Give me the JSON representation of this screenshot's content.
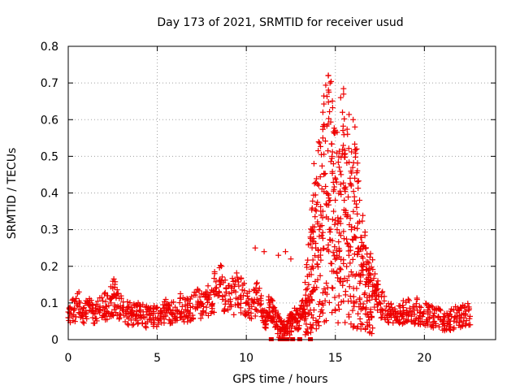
{
  "chart_data": {
    "type": "scatter",
    "title": "Day 173 of 2021, SRMTID for receiver usud",
    "xlabel": "GPS time / hours",
    "ylabel": "SRMTID / TECUs",
    "xlim": [
      0,
      24
    ],
    "ylim": [
      0,
      0.8
    ],
    "x_ticks": [
      0,
      5,
      10,
      15,
      20
    ],
    "x_tick_labels": [
      "0",
      "5",
      "10",
      "15",
      "20"
    ],
    "y_ticks": [
      0,
      0.1,
      0.2,
      0.3,
      0.4,
      0.5,
      0.6,
      0.7,
      0.8
    ],
    "y_tick_labels": [
      "0",
      "0.1",
      "0.2",
      "0.3",
      "0.4",
      "0.5",
      "0.6",
      "0.7",
      "0.8"
    ],
    "grid": true,
    "marker": "+",
    "color": "#ee0000",
    "series": [
      {
        "name": "SRMTID",
        "x": [
          0.0,
          0.3,
          0.6,
          0.9,
          1.2,
          1.5,
          1.8,
          2.1,
          2.4,
          2.6,
          2.8,
          3.1,
          3.4,
          3.7,
          4.0,
          4.3,
          4.6,
          4.9,
          5.2,
          5.5,
          5.8,
          6.1,
          6.4,
          6.7,
          7.0,
          7.3,
          7.6,
          7.9,
          8.2,
          8.5,
          8.8,
          9.1,
          9.4,
          9.7,
          10.0,
          10.3,
          10.6,
          10.9,
          11.1,
          11.3,
          11.5,
          11.7,
          11.9,
          12.1,
          12.3,
          12.5,
          12.7,
          12.9,
          13.1,
          13.3,
          13.5,
          13.7,
          13.9,
          14.1,
          14.3,
          14.5,
          14.7,
          14.9,
          15.1,
          15.3,
          15.5,
          15.7,
          15.9,
          16.1,
          16.3,
          16.5,
          16.7,
          16.9,
          17.1,
          17.3,
          17.5,
          17.8,
          18.1,
          18.4,
          18.7,
          19.0,
          19.3,
          19.6,
          19.9,
          20.2,
          20.5,
          20.8,
          21.1,
          21.4,
          21.7,
          22.0,
          22.3,
          22.6
        ],
        "y": [
          0.06,
          0.08,
          0.09,
          0.07,
          0.08,
          0.07,
          0.08,
          0.09,
          0.1,
          0.12,
          0.09,
          0.08,
          0.07,
          0.07,
          0.08,
          0.06,
          0.07,
          0.06,
          0.07,
          0.08,
          0.07,
          0.08,
          0.09,
          0.08,
          0.09,
          0.1,
          0.09,
          0.11,
          0.13,
          0.15,
          0.12,
          0.11,
          0.13,
          0.12,
          0.1,
          0.09,
          0.11,
          0.08,
          0.05,
          0.1,
          0.08,
          0.05,
          0.03,
          0.04,
          0.02,
          0.05,
          0.06,
          0.05,
          0.07,
          0.1,
          0.15,
          0.2,
          0.25,
          0.3,
          0.35,
          0.4,
          0.38,
          0.35,
          0.3,
          0.33,
          0.38,
          0.34,
          0.3,
          0.28,
          0.25,
          0.2,
          0.15,
          0.12,
          0.15,
          0.12,
          0.1,
          0.08,
          0.07,
          0.06,
          0.07,
          0.08,
          0.07,
          0.08,
          0.07,
          0.07,
          0.06,
          0.06,
          0.05,
          0.05,
          0.06,
          0.06,
          0.07,
          0.07
        ]
      }
    ],
    "outliers": {
      "x": [
        14.6,
        14.7,
        15.3,
        15.4,
        16.0,
        16.1,
        13.8,
        14.3,
        15.0,
        16.2,
        12.5,
        12.2,
        11.8,
        11.0,
        10.5,
        8.6,
        2.5,
        0.6
      ],
      "y": [
        0.72,
        0.7,
        0.66,
        0.62,
        0.6,
        0.58,
        0.48,
        0.55,
        0.57,
        0.52,
        0.22,
        0.24,
        0.23,
        0.24,
        0.25,
        0.2,
        0.14,
        0.13
      ]
    },
    "zero_points": {
      "x": [
        11.4,
        11.9,
        12.1,
        12.3,
        12.6,
        13.0,
        13.6
      ],
      "y": [
        0,
        0,
        0,
        0,
        0,
        0,
        0
      ]
    }
  }
}
